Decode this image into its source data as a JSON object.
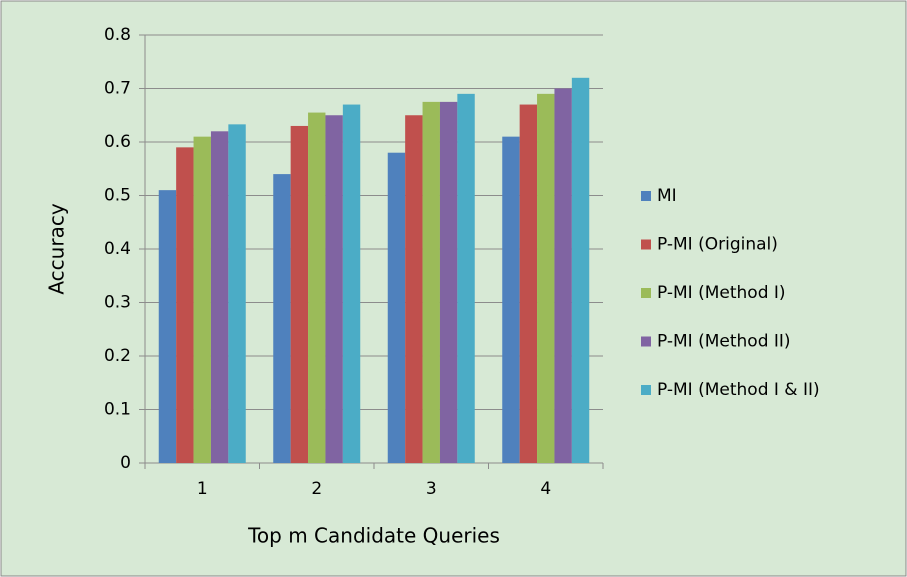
{
  "chart_data": {
    "type": "bar",
    "categories": [
      "1",
      "2",
      "3",
      "4"
    ],
    "series": [
      {
        "name": "MI",
        "color": "#4f81bd",
        "values": [
          0.51,
          0.54,
          0.58,
          0.61
        ]
      },
      {
        "name": "P-MI (Original)",
        "color": "#c0504d",
        "values": [
          0.59,
          0.63,
          0.65,
          0.67
        ]
      },
      {
        "name": "P-MI (Method I)",
        "color": "#9bbb59",
        "values": [
          0.61,
          0.655,
          0.675,
          0.69
        ]
      },
      {
        "name": "P-MI (Method II)",
        "color": "#8064a2",
        "values": [
          0.62,
          0.65,
          0.675,
          0.7
        ]
      },
      {
        "name": "P-MI (Method I & II)",
        "color": "#4bacc6",
        "values": [
          0.633,
          0.67,
          0.69,
          0.72
        ]
      }
    ],
    "ylabel": "Accuracy",
    "xlabel": "Top m Candidate Queries",
    "ylim": [
      0,
      0.8
    ],
    "yticks": [
      0,
      0.1,
      0.2,
      0.3,
      0.4,
      0.5,
      0.6,
      0.7,
      0.8
    ],
    "grid": true,
    "legend": "right"
  }
}
